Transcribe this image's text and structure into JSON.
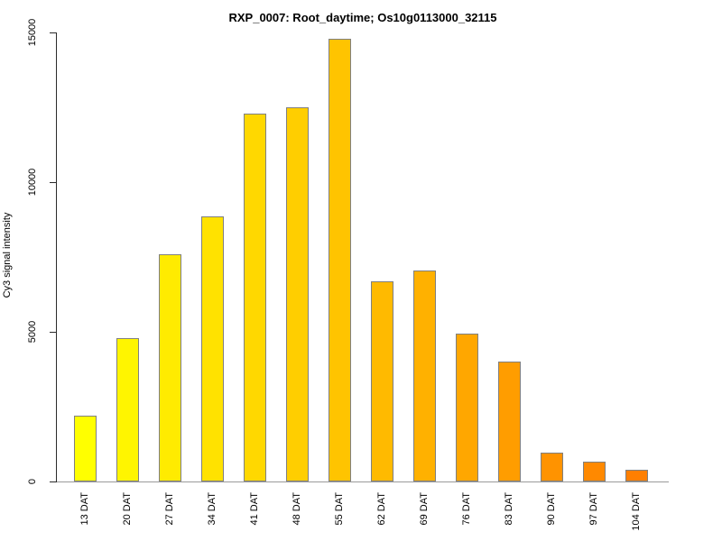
{
  "figure": {
    "background": "#ffffff"
  },
  "chart_data": {
    "type": "bar",
    "title": "RXP_0007: Root_daytime; Os10g0113000_32115",
    "xlabel": "",
    "ylabel": "Cy3 signal intensity",
    "categories": [
      "13 DAT",
      "20 DAT",
      "27 DAT",
      "34 DAT",
      "41 DAT",
      "48 DAT",
      "55 DAT",
      "62 DAT",
      "69 DAT",
      "76 DAT",
      "83 DAT",
      "90 DAT",
      "97 DAT",
      "104 DAT"
    ],
    "values": [
      2200,
      4800,
      7600,
      8850,
      12300,
      12500,
      14800,
      6700,
      7050,
      4950,
      4000,
      950,
      650,
      400
    ],
    "bar_colors": [
      "#FFFF00",
      "#FFF500",
      "#FFEB00",
      "#FFE200",
      "#FFD800",
      "#FFCE00",
      "#FFC400",
      "#FFBA00",
      "#FFB100",
      "#FFA700",
      "#FF9D00",
      "#FF9300",
      "#FF8900",
      "#FF7F00"
    ],
    "ylim": [
      0,
      15000
    ],
    "yticks": [
      0,
      5000,
      10000,
      15000
    ],
    "ytick_labels": [
      "0",
      "5000",
      "10000",
      "15000"
    ],
    "grid": false,
    "legend": null,
    "bar_border_color": "#808080",
    "axis_color": "#2b2b2b",
    "baseline_color": "#9a9a9a",
    "x_tick_label_rotation": -90,
    "y_tick_label_rotation": -90
  }
}
